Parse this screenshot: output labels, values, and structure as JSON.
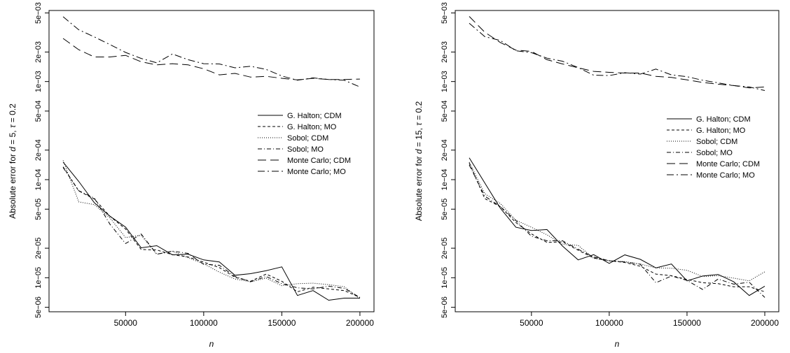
{
  "chart_data": [
    {
      "type": "line",
      "title": "",
      "xlabel": "n",
      "ylabel": "Absolute error for d = 5, τ = 0.2",
      "ylabel_parts": {
        "prefix": "Absolute error for ",
        "d_sym": "d",
        "mid": " = 5, ",
        "tau_sym": "τ",
        "suffix": " = 0.2"
      },
      "y_scale": "log",
      "xlim": [
        1000,
        209000
      ],
      "ylim": [
        4.5e-06,
        0.0053
      ],
      "x_ticks": [
        50000,
        100000,
        150000,
        200000
      ],
      "x_tick_labels": [
        "50000",
        "100000",
        "150000",
        "200000"
      ],
      "y_ticks": [
        5e-06,
        1e-05,
        2e-05,
        5e-05,
        0.0001,
        0.0002,
        0.0005,
        0.001,
        0.002,
        0.005
      ],
      "y_tick_labels": [
        "5e−06",
        "1e−05",
        "2e−05",
        "5e−05",
        "1e−04",
        "2e−04",
        "5e−04",
        "1e−03",
        "2e−03",
        "5e−03"
      ],
      "grid": false,
      "legend_position": "right",
      "x": [
        10000,
        20000,
        30000,
        40000,
        50000,
        60000,
        70000,
        80000,
        90000,
        100000,
        110000,
        120000,
        130000,
        140000,
        150000,
        160000,
        170000,
        180000,
        190000,
        200000
      ],
      "series": [
        {
          "name": "G. Halton; CDM",
          "dash": "",
          "values": [
            0.000151,
            9.59e-05,
            5.82e-05,
            4.24e-05,
            3.28e-05,
            2.02e-05,
            2.12e-05,
            1.71e-05,
            1.74e-05,
            1.52e-05,
            1.45e-05,
            1.06e-05,
            1.1e-05,
            1.18e-05,
            1.29e-05,
            6.6e-06,
            7.4e-06,
            5.9e-06,
            6.2e-06,
            6.2e-06
          ]
        },
        {
          "name": "G. Halton; MO",
          "dash": "4,3",
          "values": [
            0.000135,
            7.68e-05,
            6.35e-05,
            4.23e-05,
            3.14e-05,
            1.94e-05,
            1.92e-05,
            1.72e-05,
            1.63e-05,
            1.44e-05,
            1.27e-05,
            1.01e-05,
            9.2e-06,
            1.09e-05,
            9.2e-06,
            7.2e-06,
            8e-06,
            7.7e-06,
            7.4e-06,
            6.3e-06
          ]
        },
        {
          "name": "Sobol; CDM",
          "dash": "1,2",
          "values": [
            0.000157,
            5.93e-05,
            5.57e-05,
            4.07e-05,
            2.57e-05,
            2.71e-05,
            1.73e-05,
            1.86e-05,
            1.6e-05,
            1.39e-05,
            1.14e-05,
            9.7e-06,
            9.1e-06,
            9.9e-06,
            8.3e-06,
            8.7e-06,
            8.8e-06,
            8.5e-06,
            8.1e-06,
            6.1e-06
          ]
        },
        {
          "name": "Sobol; MO",
          "dash": "6,3,1,3",
          "values": [
            0.000133,
            7.71e-05,
            6.48e-05,
            3.51e-05,
            2.23e-05,
            2.79e-05,
            1.74e-05,
            1.87e-05,
            1.77e-05,
            1.37e-05,
            1.34e-05,
            1.03e-05,
            9.1e-06,
            1.03e-05,
            8.7e-06,
            7.9e-06,
            7.7e-06,
            8.2e-06,
            7.8e-06,
            6.3e-06
          ]
        },
        {
          "name": "Monte Carlo; CDM",
          "dash": "12,6",
          "values": [
            0.00275,
            0.00211,
            0.00178,
            0.00178,
            0.00185,
            0.00159,
            0.00148,
            0.00152,
            0.00148,
            0.00135,
            0.00117,
            0.00121,
            0.00111,
            0.00113,
            0.00108,
            0.00104,
            0.00108,
            0.00105,
            0.00105,
            0.00106
          ]
        },
        {
          "name": "Monte Carlo; MO",
          "dash": "10,4,2,4",
          "values": [
            0.00458,
            0.00337,
            0.00285,
            0.00238,
            0.00198,
            0.00172,
            0.00155,
            0.00191,
            0.00167,
            0.00152,
            0.00151,
            0.00138,
            0.00143,
            0.00133,
            0.00114,
            0.00103,
            0.00109,
            0.00105,
            0.00103,
            0.00088
          ]
        }
      ]
    },
    {
      "type": "line",
      "title": "",
      "xlabel": "n",
      "ylabel": "Absolute error for d = 15, τ = 0.2",
      "ylabel_parts": {
        "prefix": "Absolute error for ",
        "d_sym": "d",
        "mid": " = 15, ",
        "tau_sym": "τ",
        "suffix": " = 0.2"
      },
      "y_scale": "log",
      "xlim": [
        1000,
        209000
      ],
      "ylim": [
        4.5e-06,
        0.0053
      ],
      "x_ticks": [
        50000,
        100000,
        150000,
        200000
      ],
      "x_tick_labels": [
        "50000",
        "100000",
        "150000",
        "200000"
      ],
      "y_ticks": [
        5e-06,
        1e-05,
        2e-05,
        5e-05,
        0.0001,
        0.0002,
        0.0005,
        0.001,
        0.002,
        0.005
      ],
      "y_tick_labels": [
        "5e−06",
        "1e−05",
        "2e−05",
        "5e−05",
        "1e−04",
        "2e−04",
        "5e−04",
        "1e−03",
        "2e−03",
        "5e−03"
      ],
      "grid": false,
      "legend_position": "right",
      "x": [
        10000,
        20000,
        30000,
        40000,
        50000,
        60000,
        70000,
        80000,
        90000,
        100000,
        110000,
        120000,
        130000,
        140000,
        150000,
        160000,
        170000,
        180000,
        190000,
        200000
      ],
      "series": [
        {
          "name": "G. Halton; CDM",
          "dash": "",
          "values": [
            0.000167,
            9.26e-05,
            5.12e-05,
            3.27e-05,
            3.03e-05,
            3.1e-05,
            2.1e-05,
            1.52e-05,
            1.72e-05,
            1.4e-05,
            1.71e-05,
            1.54e-05,
            1.26e-05,
            1.38e-05,
            9.3e-06,
            1.04e-05,
            1.08e-05,
            9.1e-06,
            6.6e-06,
            8.2e-06
          ]
        },
        {
          "name": "G. Halton; MO",
          "dash": "4,3",
          "values": [
            0.000148,
            6.41e-05,
            5.3e-05,
            3.65e-05,
            2.8e-05,
            2.29e-05,
            2.32e-05,
            1.91e-05,
            1.59e-05,
            1.49e-05,
            1.43e-05,
            1.31e-05,
            1.09e-05,
            1.05e-05,
            9.6e-06,
            8.9e-06,
            8.7e-06,
            8.1e-06,
            8.1e-06,
            7.2e-06
          ]
        },
        {
          "name": "Sobol; CDM",
          "dash": "1,2",
          "values": [
            0.000151,
            7.19e-05,
            5.71e-05,
            3.86e-05,
            3.27e-05,
            2.74e-05,
            2.19e-05,
            2.14e-05,
            1.58e-05,
            1.49e-05,
            1.46e-05,
            1.38e-05,
            1.26e-05,
            1.25e-05,
            1.19e-05,
            1.03e-05,
            1.05e-05,
            9.9e-06,
            9.3e-06,
            1.15e-05
          ]
        },
        {
          "name": "Sobol; MO",
          "dash": "6,3,1,3",
          "values": [
            0.000141,
            6.79e-05,
            5.31e-05,
            3.83e-05,
            2.65e-05,
            2.38e-05,
            2.38e-05,
            1.95e-05,
            1.63e-05,
            1.49e-05,
            1.45e-05,
            1.37e-05,
            8.9e-06,
            1.04e-05,
            9.4e-06,
            7.6e-06,
            9.7e-06,
            8.6e-06,
            9e-06,
            6.3e-06
          ]
        },
        {
          "name": "Monte Carlo; CDM",
          "dash": "12,6",
          "values": [
            0.00461,
            0.00318,
            0.0025,
            0.00209,
            0.00203,
            0.00167,
            0.00151,
            0.00138,
            0.00127,
            0.00124,
            0.00122,
            0.00122,
            0.00113,
            0.0011,
            0.00104,
            0.00098,
            0.00094,
            0.00091,
            0.00086,
            0.00088
          ]
        },
        {
          "name": "Monte Carlo; MO",
          "dash": "10,4,2,4",
          "values": [
            0.00393,
            0.00287,
            0.00262,
            0.00206,
            0.00197,
            0.00173,
            0.00161,
            0.00139,
            0.00116,
            0.00115,
            0.00123,
            0.00119,
            0.00134,
            0.00117,
            0.00112,
            0.00103,
            0.00097,
            0.00091,
            0.00088,
            0.00081
          ]
        }
      ]
    }
  ]
}
